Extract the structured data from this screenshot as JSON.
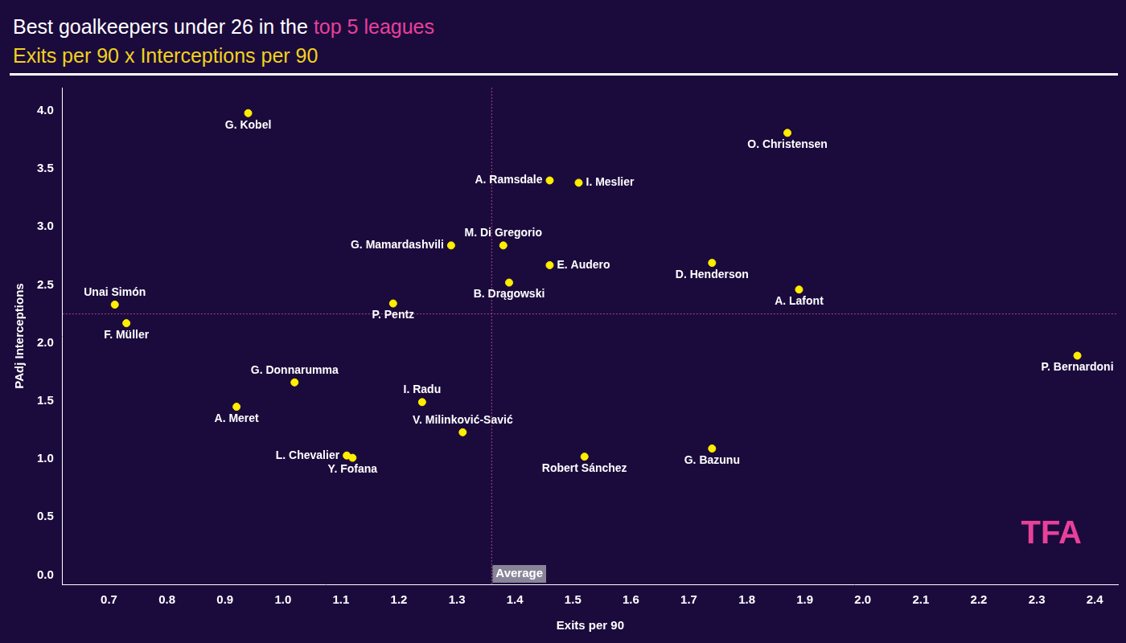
{
  "chart_data": {
    "type": "scatter",
    "title": "Best goalkeepers under 26 in the top 5 leagues",
    "title_highlight": "top 5 leagues",
    "subtitle": "Exits per 90 x Interceptions per 90",
    "x_label": "Exits per 90",
    "y_label": "PAdj Interceptions",
    "point_labels": [
      "G. Kobel",
      "O. Christensen",
      "A. Ramsdale",
      "I. Meslier",
      "M. Di Gregorio",
      "G. Mamardashvili",
      "E. Audero",
      "D. Henderson",
      "B. Drągowski",
      "A. Lafont",
      "Unai Simón",
      "P. Pentz",
      "F. Müller",
      "P. Bernardoni",
      "G. Donnarumma",
      "I. Radu",
      "A. Meret",
      "V. Milinković-Savić",
      "L. Chevalier",
      "Y. Fofana",
      "Robert Sánchez",
      "G. Bazunu"
    ],
    "x": [
      0.94,
      1.87,
      1.46,
      1.51,
      1.38,
      1.29,
      1.46,
      1.74,
      1.39,
      1.89,
      0.71,
      1.19,
      0.73,
      2.37,
      1.02,
      1.24,
      0.92,
      1.31,
      1.11,
      1.12,
      1.52,
      1.74
    ],
    "values": [
      3.98,
      3.81,
      3.4,
      3.38,
      2.84,
      2.84,
      2.67,
      2.69,
      2.52,
      2.46,
      2.33,
      2.34,
      2.17,
      1.89,
      1.66,
      1.49,
      1.45,
      1.23,
      1.03,
      1.01,
      1.02,
      1.09
    ],
    "color": "#ffee00",
    "xlim": [
      0.62,
      2.44
    ],
    "xticks": [
      0.7,
      0.8,
      0.9,
      {
        "value": 1.0,
        "label": "1.0"
      },
      1.1,
      1.2,
      1.3,
      1.4,
      1.5,
      1.6,
      1.7,
      1.8,
      1.9,
      {
        "value": 2.0,
        "label": "2.0"
      },
      2.1,
      2.2,
      2.3,
      2.4
    ],
    "ylim": [
      -0.08,
      4.2
    ],
    "yticks": [
      {
        "value": 0,
        "label": "0.0"
      },
      0.5,
      {
        "value": 1,
        "label": "1.0"
      },
      1.5,
      {
        "value": 2,
        "label": "2.0"
      },
      2.5,
      {
        "value": 3,
        "label": "3.0"
      },
      3.5,
      {
        "value": 4,
        "label": "4.0"
      }
    ],
    "averages": {
      "x": 1.36,
      "y": 2.25,
      "label": "Average"
    },
    "annotations": [
      "TFA"
    ],
    "grid": false
  }
}
